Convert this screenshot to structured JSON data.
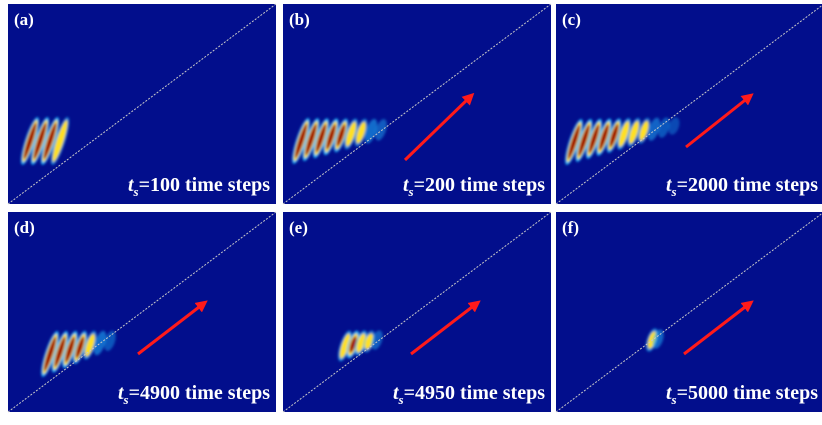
{
  "panels": [
    {
      "label": "(a)",
      "caption": {
        "symbol": "t",
        "subscript": "s",
        "text": "=100 time steps"
      }
    },
    {
      "label": "(b)",
      "caption": {
        "symbol": "t",
        "subscript": "s",
        "text": "=200 time steps"
      }
    },
    {
      "label": "(c)",
      "caption": {
        "symbol": "t",
        "subscript": "s",
        "text": "=2000 time steps"
      }
    },
    {
      "label": "(d)",
      "caption": {
        "symbol": "t",
        "subscript": "s",
        "text": "=4900 time steps"
      }
    },
    {
      "label": "(e)",
      "caption": {
        "symbol": "t",
        "subscript": "s",
        "text": "=4950 time steps"
      }
    },
    {
      "label": "(f)",
      "caption": {
        "symbol": "t",
        "subscript": "s",
        "text": "=5000 time steps"
      }
    }
  ]
}
